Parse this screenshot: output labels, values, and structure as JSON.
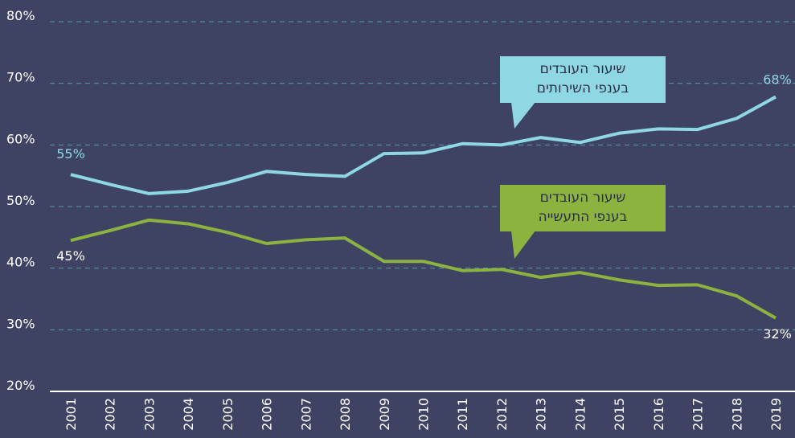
{
  "chart_data": {
    "type": "line",
    "categories": [
      "2001",
      "2002",
      "2003",
      "2004",
      "2005",
      "2006",
      "2007",
      "2008",
      "2009",
      "2010",
      "2011",
      "2012",
      "2013",
      "2014",
      "2015",
      "2016",
      "2017",
      "2018",
      "2019"
    ],
    "series": [
      {
        "name": "שיעור העובדים\nבענפי השירותים",
        "color": "#8fd8e3",
        "values": [
          55.2,
          53.6,
          52.1,
          52.5,
          53.9,
          55.7,
          55.2,
          54.9,
          58.6,
          58.7,
          60.2,
          60.0,
          61.2,
          60.4,
          61.9,
          62.6,
          62.5,
          64.3,
          67.8
        ],
        "value_labels": [
          "55%",
          null,
          null,
          null,
          null,
          null,
          null,
          null,
          null,
          null,
          null,
          null,
          null,
          null,
          null,
          null,
          null,
          null,
          "68%"
        ]
      },
      {
        "name": "שיעור העובדים\nבענפי התעשייה",
        "color": "#8cb33f",
        "values": [
          44.5,
          46.1,
          47.8,
          47.2,
          45.8,
          44.0,
          44.6,
          44.9,
          41.1,
          41.1,
          39.6,
          39.8,
          38.5,
          39.3,
          38.1,
          37.2,
          37.3,
          35.5,
          31.9
        ],
        "value_labels": [
          "45%",
          null,
          null,
          null,
          null,
          null,
          null,
          null,
          null,
          null,
          null,
          null,
          null,
          null,
          null,
          null,
          null,
          null,
          "32%"
        ]
      }
    ],
    "ylim": [
      20,
      80
    ],
    "yticks": [
      {
        "value": 20,
        "label": "20%"
      },
      {
        "value": 30,
        "label": "30%"
      },
      {
        "value": 40,
        "label": "40%"
      },
      {
        "value": 50,
        "label": "50%"
      },
      {
        "value": 60,
        "label": "60%"
      },
      {
        "value": 70,
        "label": "70%"
      },
      {
        "value": 80,
        "label": "80%"
      }
    ],
    "grid": true
  }
}
